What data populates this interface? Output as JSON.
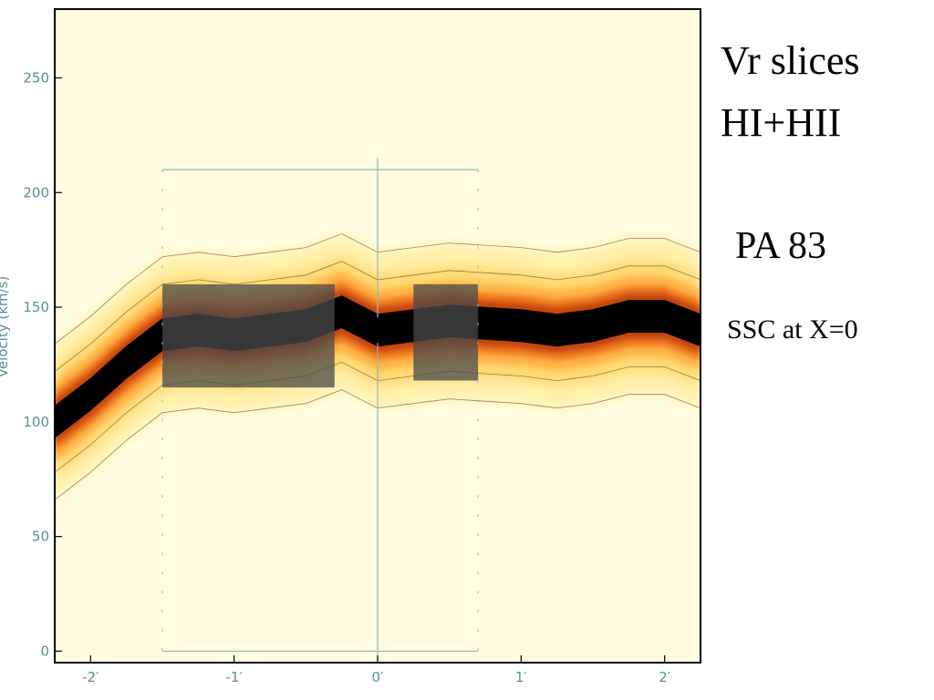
{
  "annotations": {
    "title_line1": "Vr slices",
    "title_line2": "HI+HII",
    "pa": "PA 83",
    "ssc": "SSC at X=0"
  },
  "chart_data": {
    "type": "heatmap",
    "title": "Vr slices HI+HII",
    "xlabel": "",
    "ylabel": "Velocity (km/s)",
    "xlim": [
      -2.25,
      2.25
    ],
    "ylim": [
      -5,
      280
    ],
    "x_ticks": [
      -2,
      -1,
      0,
      1,
      2
    ],
    "x_tick_labels": [
      "-2′",
      "-1′",
      "0′",
      "1′",
      "2′"
    ],
    "y_ticks": [
      0,
      50,
      100,
      150,
      200,
      250
    ],
    "y_tick_labels": [
      "0",
      "50",
      "100",
      "150",
      "200",
      "250"
    ],
    "ridge": {
      "name": "",
      "x": [
        -2.25,
        -2.0,
        -1.75,
        -1.5,
        -1.25,
        -1.0,
        -0.75,
        -0.5,
        -0.25,
        0.0,
        0.25,
        0.5,
        0.75,
        1.0,
        1.25,
        1.5,
        1.75,
        2.0,
        2.25
      ],
      "velocity": [
        100,
        112,
        126,
        138,
        140,
        138,
        140,
        142,
        148,
        140,
        142,
        144,
        143,
        142,
        140,
        142,
        146,
        146,
        140
      ]
    },
    "marker": {
      "x": 0.0,
      "velocity": 140,
      "symbol": "+"
    },
    "grid": false,
    "colormap": [
      "#fffce0",
      "#fff0a8",
      "#ffd770",
      "#ffb347",
      "#f07a20",
      "#c4440e",
      "#4a4a4a",
      "#000000"
    ]
  }
}
